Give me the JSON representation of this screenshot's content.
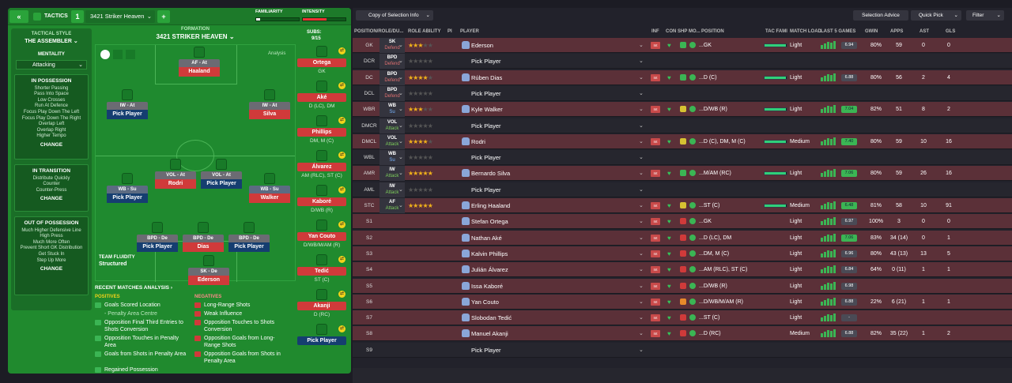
{
  "left": {
    "tactics_label": "TACTICS",
    "tactic_slot": "1",
    "tactic_name": "3421 Striker Heaven",
    "add": "+",
    "back": "«",
    "familiarity_label": "FAMILIARITY",
    "familiarity_value": 0.1,
    "intensity_label": "INTENSITY",
    "intensity_value": 0.55,
    "style_label": "TACTICAL STYLE",
    "style_name": "THE ASSEMBLER",
    "mentality_label": "MENTALITY",
    "mentality_value": "Attacking",
    "in_possession": {
      "title": "IN POSSESSION",
      "items": [
        "Shorter Passing",
        "Pass Into Space",
        "Low Crosses",
        "Run At Defence",
        "Focus Play Down The Left",
        "Focus Play Down The Right",
        "Overlap Left",
        "Overlap Right",
        "Higher Tempo"
      ],
      "change": "CHANGE"
    },
    "in_transition": {
      "title": "IN TRANSITION",
      "items": [
        "Distribute Quickly",
        "Counter",
        "Counter-Press"
      ],
      "change": "CHANGE"
    },
    "out_possession": {
      "title": "OUT OF POSSESSION",
      "items": [
        "Much Higher Defensive Line",
        "High Press",
        "Much More Often",
        "Prevent Short GK Distribution",
        "Get Stuck In",
        "Step Up More"
      ],
      "change": "CHANGE"
    },
    "formation_label": "FORMATION",
    "formation_name": "3421 STRIKER HEAVEN",
    "analysis_btn": "Analysis",
    "subs_label": "SUBS:",
    "subs_count": "9/15",
    "fluidity_label": "TEAM FLUIDITY",
    "fluidity_value": "Structured",
    "pitch": [
      {
        "role": "AF - At",
        "name": "Haaland",
        "dark": false
      },
      {
        "role": "IW - At",
        "name": "Pick Player",
        "dark": true
      },
      {
        "role": "IW - At",
        "name": "Silva",
        "dark": false
      },
      {
        "role": "VOL - At",
        "name": "Rodri",
        "dark": false
      },
      {
        "role": "VOL - At",
        "name": "Pick Player",
        "dark": true
      },
      {
        "role": "WB - Su",
        "name": "Pick Player",
        "dark": true
      },
      {
        "role": "WB - Su",
        "name": "Walker",
        "dark": false
      },
      {
        "role": "BPD - De",
        "name": "Pick Player",
        "dark": true
      },
      {
        "role": "BPD - De",
        "name": "Dias",
        "dark": false
      },
      {
        "role": "BPD - De",
        "name": "Pick Player",
        "dark": true
      },
      {
        "role": "SK - De",
        "name": "Ederson",
        "dark": false
      }
    ],
    "subs": [
      {
        "name": "Ortega",
        "pos": "GK"
      },
      {
        "name": "Aké",
        "pos": "D (LC), DM"
      },
      {
        "name": "Phillips",
        "pos": "DM, M (C)"
      },
      {
        "name": "Álvarez",
        "pos": "AM (RLC), ST (C)"
      },
      {
        "name": "Kaboré",
        "pos": "D/WB (R)"
      },
      {
        "name": "Yan Couto",
        "pos": "D/WB/M/AM (R)"
      },
      {
        "name": "Tedić",
        "pos": "ST (C)"
      },
      {
        "name": "Akanji",
        "pos": "D (RC)"
      },
      {
        "name": "Pick Player",
        "pos": ""
      }
    ],
    "analysis_title": "RECENT MATCHES ANALYSIS ›",
    "positives_label": "POSITIVES",
    "positives": [
      "Goals Scored Location",
      "- Penalty Area Centre",
      "Opposition Final Third Entries to Shots Conversion",
      "Opposition Touches in Penalty Area",
      "Goals from Shots in Penalty Area",
      "Regained Possession"
    ],
    "negatives_label": "NEGATIVES",
    "negatives": [
      "Long-Range Shots",
      "Weak Influence",
      "Opposition Touches to Shots Conversion",
      "Opposition Goals from Long-Range Shots",
      "Opposition Goals from Shots in Penalty Area"
    ]
  },
  "right": {
    "copy_btn": "Copy of Selection Info",
    "selection_advice": "Selection Advice",
    "quick_pick": "Quick Pick",
    "filter": "Filter",
    "headers": {
      "pos": "POSITION/ROLE/DU...",
      "ability": "ROLE ABILITY",
      "pi": "PI",
      "player": "PLAYER",
      "inf": "INF",
      "con": "CON",
      "shp": "SHP",
      "mo": "MO...",
      "position": "POSITION",
      "tac": "TAC FAMI",
      "load": "MATCH LOAD",
      "l5": "LAST 5 GAMES",
      "gwin": "GWIN",
      "apps": "APPS",
      "ast": "AST",
      "gls": "GLS"
    },
    "rows": [
      {
        "pos": "GK",
        "r1": "SK",
        "r2": "Defend",
        "rc": "def",
        "stars": 2.5,
        "player": "Ederson",
        "ppos": "GK",
        "load": "Light",
        "rating": "6.94",
        "gwin": "80%",
        "apps": "59",
        "ast": "0",
        "gls": "0",
        "style": "red",
        "fam": 0.95,
        "shp": "green"
      },
      {
        "pos": "DCR",
        "r1": "BPD",
        "r2": "Defend",
        "rc": "def",
        "stars": 0,
        "player": "Pick Player",
        "ppos": "",
        "load": "",
        "rating": "",
        "gwin": "",
        "apps": "",
        "ast": "",
        "gls": "",
        "style": "dk",
        "fam": 0,
        "shp": ""
      },
      {
        "pos": "DC",
        "r1": "BPD",
        "r2": "Defend",
        "rc": "def",
        "stars": 4,
        "player": "Rúben Dias",
        "ppos": "D (C)",
        "load": "Light",
        "rating": "6.88",
        "gwin": "80%",
        "apps": "56",
        "ast": "2",
        "gls": "4",
        "style": "red",
        "fam": 0.95,
        "shp": "green"
      },
      {
        "pos": "DCL",
        "r1": "BPD",
        "r2": "Defend",
        "rc": "def",
        "stars": 0,
        "player": "Pick Player",
        "ppos": "",
        "load": "",
        "rating": "",
        "gwin": "",
        "apps": "",
        "ast": "",
        "gls": "",
        "style": "dk",
        "fam": 0,
        "shp": ""
      },
      {
        "pos": "WBR",
        "r1": "WB",
        "r2": "Su",
        "rc": "sup",
        "stars": 3,
        "player": "Kyle Walker",
        "ppos": "D/WB (R)",
        "load": "Light",
        "rating": "7.04",
        "gwin": "82%",
        "apps": "51",
        "ast": "8",
        "gls": "2",
        "style": "red",
        "fam": 0.95,
        "shp": "yellow"
      },
      {
        "pos": "DMCR",
        "r1": "VOL",
        "r2": "Attack",
        "rc": "att",
        "stars": 0,
        "player": "Pick Player",
        "ppos": "",
        "load": "",
        "rating": "",
        "gwin": "",
        "apps": "",
        "ast": "",
        "gls": "",
        "style": "dk",
        "fam": 0,
        "shp": ""
      },
      {
        "pos": "DMCL",
        "r1": "VOL",
        "r2": "Attack",
        "rc": "att",
        "stars": 4,
        "player": "Rodri",
        "ppos": "D (C), DM, M (C)",
        "load": "Medium",
        "rating": "7.40",
        "gwin": "80%",
        "apps": "59",
        "ast": "10",
        "gls": "16",
        "style": "red",
        "fam": 0.95,
        "shp": "yellow"
      },
      {
        "pos": "WBL",
        "r1": "WB",
        "r2": "Su",
        "rc": "sup",
        "stars": 0,
        "player": "Pick Player",
        "ppos": "",
        "load": "",
        "rating": "",
        "gwin": "",
        "apps": "",
        "ast": "",
        "gls": "",
        "style": "dk",
        "fam": 0,
        "shp": ""
      },
      {
        "pos": "AMR",
        "r1": "IW",
        "r2": "Attack",
        "rc": "att",
        "stars": 5,
        "player": "Bernardo Silva",
        "ppos": "M/AM (RC)",
        "load": "Light",
        "rating": "7.06",
        "gwin": "80%",
        "apps": "59",
        "ast": "26",
        "gls": "16",
        "style": "red",
        "fam": 0.95,
        "shp": "green"
      },
      {
        "pos": "AML",
        "r1": "IW",
        "r2": "Attack",
        "rc": "att",
        "stars": 0,
        "player": "Pick Player",
        "ppos": "",
        "load": "",
        "rating": "",
        "gwin": "",
        "apps": "",
        "ast": "",
        "gls": "",
        "style": "dk",
        "fam": 0,
        "shp": ""
      },
      {
        "pos": "STC",
        "r1": "AF",
        "r2": "Attack",
        "rc": "att",
        "stars": 5,
        "player": "Erling Haaland",
        "ppos": "ST (C)",
        "load": "Medium",
        "rating": "6.48",
        "gwin": "81%",
        "apps": "58",
        "ast": "10",
        "gls": "91",
        "style": "red",
        "fam": 0.95,
        "shp": "yellow"
      },
      {
        "pos": "S1",
        "r1": "",
        "r2": "",
        "rc": "",
        "stars": 0,
        "player": "Stefan Ortega",
        "ppos": "GK",
        "load": "Light",
        "rating": "6.97",
        "gwin": "100%",
        "apps": "3",
        "ast": "0",
        "gls": "0",
        "style": "red",
        "fam": 0,
        "shp": "red"
      },
      {
        "pos": "S2",
        "r1": "",
        "r2": "",
        "rc": "",
        "stars": 0,
        "player": "Nathan Aké",
        "ppos": "D (LC), DM",
        "load": "Light",
        "rating": "7.06",
        "gwin": "83%",
        "apps": "34 (14)",
        "ast": "0",
        "gls": "1",
        "style": "red",
        "fam": 0,
        "shp": "red"
      },
      {
        "pos": "S3",
        "r1": "",
        "r2": "",
        "rc": "",
        "stars": 0,
        "player": "Kalvin Phillips",
        "ppos": "DM, M (C)",
        "load": "Light",
        "rating": "6.96",
        "gwin": "80%",
        "apps": "43 (13)",
        "ast": "13",
        "gls": "5",
        "style": "red",
        "fam": 0,
        "shp": "red"
      },
      {
        "pos": "S4",
        "r1": "",
        "r2": "",
        "rc": "",
        "stars": 0,
        "player": "Julián Álvarez",
        "ppos": "AM (RLC), ST (C)",
        "load": "Light",
        "rating": "6.84",
        "gwin": "64%",
        "apps": "0 (11)",
        "ast": "1",
        "gls": "1",
        "style": "red",
        "fam": 0,
        "shp": "red"
      },
      {
        "pos": "S5",
        "r1": "",
        "r2": "",
        "rc": "",
        "stars": 0,
        "player": "Issa Kaboré",
        "ppos": "D/WB (R)",
        "load": "Light",
        "rating": "6.98",
        "gwin": "",
        "apps": "",
        "ast": "",
        "gls": "",
        "style": "red",
        "fam": 0,
        "shp": "red"
      },
      {
        "pos": "S6",
        "r1": "",
        "r2": "",
        "rc": "",
        "stars": 0,
        "player": "Yan Couto",
        "ppos": "D/WB/M/AM (R)",
        "load": "Light",
        "rating": "6.88",
        "gwin": "22%",
        "apps": "6 (21)",
        "ast": "1",
        "gls": "1",
        "style": "red",
        "fam": 0,
        "shp": "orange"
      },
      {
        "pos": "S7",
        "r1": "",
        "r2": "",
        "rc": "",
        "stars": 0,
        "player": "Slobodan Tedić",
        "ppos": "ST (C)",
        "load": "Light",
        "rating": "-",
        "gwin": "",
        "apps": "",
        "ast": "",
        "gls": "",
        "style": "red",
        "fam": 0,
        "shp": "red"
      },
      {
        "pos": "S8",
        "r1": "",
        "r2": "",
        "rc": "",
        "stars": 0,
        "player": "Manuel Akanji",
        "ppos": "D (RC)",
        "load": "Medium",
        "rating": "6.88",
        "gwin": "82%",
        "apps": "35 (22)",
        "ast": "1",
        "gls": "2",
        "style": "red",
        "fam": 0,
        "shp": "red"
      },
      {
        "pos": "S9",
        "r1": "",
        "r2": "",
        "rc": "",
        "stars": 0,
        "player": "Pick Player",
        "ppos": "",
        "load": "",
        "rating": "",
        "gwin": "",
        "apps": "",
        "ast": "",
        "gls": "",
        "style": "dk",
        "fam": 0,
        "shp": ""
      }
    ]
  }
}
